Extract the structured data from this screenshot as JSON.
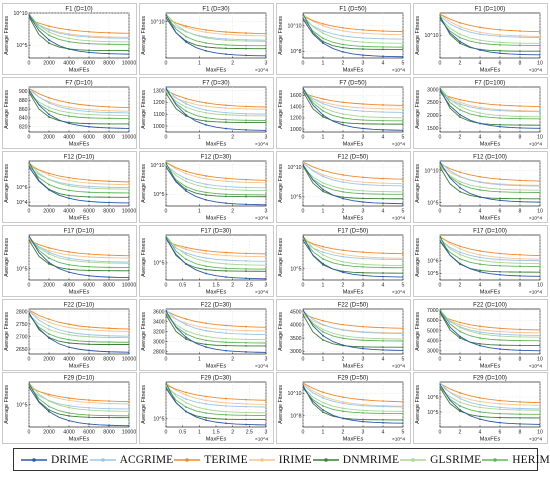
{
  "colors": {
    "DRIME": "#2a5aa8",
    "ACGRIME": "#9ec6e6",
    "TERIME": "#ef8a2f",
    "IRIME": "#f6c48e",
    "DNMRIME": "#3a7f37",
    "GLSRIME": "#a8d59a",
    "HERIME": "#63b55a"
  },
  "legend": [
    "DRIME",
    "ACGRIME",
    "TERIME",
    "IRIME",
    "DNMRIME",
    "GLSRIME",
    "HERIME"
  ],
  "chart_data": [
    {
      "type": "line",
      "title": "F1 (D=10)",
      "xlabel": "MaxFEs",
      "ylabel": "Average Fitness",
      "xticks": [
        "0",
        "2000",
        "4000",
        "6000",
        "8000",
        "10000"
      ],
      "xlim": [
        0,
        10000
      ],
      "yscale": "log",
      "yticks": [
        "10^10",
        "10^5"
      ],
      "ylim": [
        1000,
        10000000000
      ],
      "xexp": ""
    },
    {
      "type": "line",
      "title": "F1 (D=30)",
      "xlabel": "MaxFEs",
      "ylabel": "Average Fitness",
      "xticks": [
        "0",
        "1",
        "2",
        "3"
      ],
      "xlim": [
        0,
        3
      ],
      "yscale": "log",
      "yticks": [
        "10^10"
      ],
      "ylim": [
        10000000,
        50000000000
      ],
      "xexp": "×10^4"
    },
    {
      "type": "line",
      "title": "F1 (D=50)",
      "xlabel": "MaxFEs",
      "ylabel": "Average Fitness",
      "xticks": [
        "0",
        "1",
        "2",
        "3",
        "4",
        "5"
      ],
      "xlim": [
        0,
        5
      ],
      "yscale": "log",
      "yticks": [
        "10^10",
        "10^8"
      ],
      "ylim": [
        30000000,
        100000000000
      ],
      "xexp": "×10^4"
    },
    {
      "type": "line",
      "title": "F1 (D=100)",
      "xlabel": "MaxFEs",
      "ylabel": "Average Fitness",
      "xticks": [
        "0",
        "2",
        "4",
        "6",
        "8",
        "10"
      ],
      "xlim": [
        0,
        10
      ],
      "yscale": "log",
      "yticks": [
        "10^10"
      ],
      "ylim": [
        300000000,
        300000000000
      ],
      "xexp": "×10^4"
    },
    {
      "type": "line",
      "title": "F7 (D=10)",
      "xlabel": "MaxFEs",
      "ylabel": "Average Fitness",
      "xticks": [
        "0",
        "2000",
        "4000",
        "6000",
        "8000",
        "10000"
      ],
      "xlim": [
        0,
        10000
      ],
      "yscale": "linear",
      "yticks": [
        "820",
        "840",
        "860",
        "880",
        "900"
      ],
      "ylim": [
        808,
        910
      ],
      "xexp": ""
    },
    {
      "type": "line",
      "title": "F7 (D=30)",
      "xlabel": "MaxFEs",
      "ylabel": "Average Fitness",
      "xticks": [
        "0",
        "1",
        "2",
        "3"
      ],
      "xlim": [
        0,
        3
      ],
      "yscale": "linear",
      "yticks": [
        "1000",
        "1100",
        "1200",
        "1300"
      ],
      "ylim": [
        950,
        1330
      ],
      "xexp": "×10^4"
    },
    {
      "type": "line",
      "title": "F7 (D=50)",
      "xlabel": "MaxFEs",
      "ylabel": "Average Fitness",
      "xticks": [
        "0",
        "1",
        "2",
        "3",
        "4",
        "5"
      ],
      "xlim": [
        0,
        5
      ],
      "yscale": "linear",
      "yticks": [
        "1000",
        "1200",
        "1400",
        "1600"
      ],
      "ylim": [
        950,
        1750
      ],
      "xexp": "×10^4"
    },
    {
      "type": "line",
      "title": "F7 (D=100)",
      "xlabel": "MaxFEs",
      "ylabel": "Average Fitness",
      "xticks": [
        "0",
        "2",
        "4",
        "6",
        "8",
        "10"
      ],
      "xlim": [
        0,
        10
      ],
      "yscale": "linear",
      "yticks": [
        "1500",
        "2000",
        "2500",
        "3000"
      ],
      "ylim": [
        1350,
        3100
      ],
      "xexp": "×10^4"
    },
    {
      "type": "line",
      "title": "F12 (D=10)",
      "xlabel": "MaxFEs",
      "ylabel": "Average Fitness",
      "xticks": [
        "0",
        "2000",
        "4000",
        "6000",
        "8000",
        "10000"
      ],
      "xlim": [
        0,
        10000
      ],
      "yscale": "log",
      "yticks": [
        "10^6",
        "10^4"
      ],
      "ylim": [
        3000,
        3000000000
      ],
      "xexp": ""
    },
    {
      "type": "line",
      "title": "F12 (D=30)",
      "xlabel": "MaxFEs",
      "ylabel": "Average Fitness",
      "xticks": [
        "0",
        "1",
        "2",
        "3"
      ],
      "xlim": [
        0,
        3
      ],
      "yscale": "log",
      "yticks": [
        "10^10",
        "10^5"
      ],
      "ylim": [
        1000,
        50000000000
      ],
      "xexp": "×10^4"
    },
    {
      "type": "line",
      "title": "F12 (D=50)",
      "xlabel": "MaxFEs",
      "ylabel": "Average Fitness",
      "xticks": [
        "0",
        "1",
        "2",
        "3",
        "4",
        "5"
      ],
      "xlim": [
        0,
        5
      ],
      "yscale": "log",
      "yticks": [
        "10^10",
        "10^5"
      ],
      "ylim": [
        3000,
        100000000000
      ],
      "xexp": "×10^4"
    },
    {
      "type": "line",
      "title": "F12 (D=100)",
      "xlabel": "MaxFEs",
      "ylabel": "Average Fitness",
      "xticks": [
        "0",
        "2",
        "4",
        "6",
        "8",
        "10"
      ],
      "xlim": [
        0,
        10
      ],
      "yscale": "log",
      "yticks": [
        "10^10",
        "10^5"
      ],
      "ylim": [
        30000,
        300000000000
      ],
      "xexp": "×10^4"
    },
    {
      "type": "line",
      "title": "F17 (D=10)",
      "xlabel": "MaxFEs",
      "ylabel": "Average Fitness",
      "xticks": [
        "0",
        "2000",
        "4000",
        "6000",
        "8000",
        "10000"
      ],
      "xlim": [
        0,
        10000
      ],
      "yscale": "log",
      "yticks": [
        "10^5"
      ],
      "ylim": [
        3000,
        3000000000
      ],
      "xexp": ""
    },
    {
      "type": "line",
      "title": "F17 (D=30)",
      "xlabel": "MaxFEs",
      "ylabel": "Average Fitness",
      "xticks": [
        "0",
        "0.5",
        "1",
        "1.5",
        "2",
        "2.5",
        "3"
      ],
      "xlim": [
        0,
        3
      ],
      "yscale": "log",
      "yticks": [
        "10^5"
      ],
      "ylim": [
        3000,
        30000000
      ],
      "xexp": "×10^4"
    },
    {
      "type": "line",
      "title": "F17 (D=50)",
      "xlabel": "MaxFEs",
      "ylabel": "Average Fitness",
      "xticks": [
        "0",
        "1",
        "2",
        "3",
        "4",
        "5"
      ],
      "xlim": [
        0,
        5
      ],
      "yscale": "log",
      "yticks": [
        "10^5"
      ],
      "ylim": [
        10000,
        100000000
      ],
      "xexp": "×10^4"
    },
    {
      "type": "line",
      "title": "F17 (D=100)",
      "xlabel": "MaxFEs",
      "ylabel": "Average Fitness",
      "xticks": [
        "0",
        "2",
        "4",
        "6",
        "8",
        "10"
      ],
      "xlim": [
        0,
        10
      ],
      "yscale": "log",
      "yticks": [
        "10^6",
        "10^5"
      ],
      "ylim": [
        30000,
        100000000
      ],
      "xexp": "×10^4"
    },
    {
      "type": "line",
      "title": "F22 (D=10)",
      "xlabel": "MaxFEs",
      "ylabel": "Average Fitness",
      "xticks": [
        "0",
        "2000",
        "4000",
        "6000",
        "8000",
        "10000"
      ],
      "xlim": [
        0,
        10000
      ],
      "yscale": "linear",
      "yticks": [
        "2650",
        "2700",
        "2750",
        "2800"
      ],
      "ylim": [
        2630,
        2810
      ],
      "xexp": ""
    },
    {
      "type": "line",
      "title": "F22 (D=30)",
      "xlabel": "MaxFEs",
      "ylabel": "Average Fitness",
      "xticks": [
        "0",
        "1",
        "2",
        "3"
      ],
      "xlim": [
        0,
        3
      ],
      "yscale": "linear",
      "yticks": [
        "2800",
        "3000",
        "3200",
        "3400",
        "3600"
      ],
      "ylim": [
        2750,
        3650
      ],
      "xexp": "×10^4"
    },
    {
      "type": "line",
      "title": "F22 (D=50)",
      "xlabel": "MaxFEs",
      "ylabel": "Average Fitness",
      "xticks": [
        "0",
        "1",
        "2",
        "3",
        "4",
        "5"
      ],
      "xlim": [
        0,
        5
      ],
      "yscale": "linear",
      "yticks": [
        "3000",
        "3500",
        "4000",
        "4500"
      ],
      "ylim": [
        2900,
        4600
      ],
      "xexp": "×10^4"
    },
    {
      "type": "line",
      "title": "F22 (D=100)",
      "xlabel": "MaxFEs",
      "ylabel": "Average Fitness",
      "xticks": [
        "0",
        "2",
        "4",
        "6",
        "8",
        "10"
      ],
      "xlim": [
        0,
        10
      ],
      "yscale": "linear",
      "yticks": [
        "3000",
        "4000",
        "5000",
        "6000",
        "7000"
      ],
      "ylim": [
        2700,
        7100
      ],
      "xexp": "×10^4"
    },
    {
      "type": "line",
      "title": "F29 (D=10)",
      "xlabel": "MaxFEs",
      "ylabel": "Average Fitness",
      "xticks": [
        "0",
        "2000",
        "4000",
        "6000",
        "8000",
        "10000"
      ],
      "xlim": [
        0,
        10000
      ],
      "yscale": "log",
      "yticks": [
        "10^5"
      ],
      "ylim": [
        1000,
        10000000
      ],
      "xexp": ""
    },
    {
      "type": "line",
      "title": "F29 (D=30)",
      "xlabel": "MaxFEs",
      "ylabel": "Average Fitness",
      "xticks": [
        "0",
        "0.5",
        "1",
        "1.5",
        "2",
        "2.5",
        "3"
      ],
      "xlim": [
        0,
        3
      ],
      "yscale": "log",
      "yticks": [
        "10^5"
      ],
      "ylim": [
        10000,
        3000000000
      ],
      "xexp": "×10^4"
    },
    {
      "type": "line",
      "title": "F29 (D=50)",
      "xlabel": "MaxFEs",
      "ylabel": "Average Fitness",
      "xticks": [
        "0",
        "1",
        "2",
        "3",
        "4",
        "5"
      ],
      "xlim": [
        0,
        5
      ],
      "yscale": "log",
      "yticks": [
        "10^10",
        "10^8"
      ],
      "ylim": [
        10000000,
        100000000000
      ],
      "xexp": "×10^4"
    },
    {
      "type": "line",
      "title": "F29 (D=100)",
      "xlabel": "MaxFEs",
      "ylabel": "Average Fitness",
      "xticks": [
        "0",
        "2",
        "4",
        "6",
        "8",
        "10"
      ],
      "xlim": [
        0,
        10
      ],
      "yscale": "log",
      "yticks": [
        "10^6",
        "10^5"
      ],
      "ylim": [
        10000,
        10000000
      ],
      "xexp": "×10^4"
    }
  ]
}
